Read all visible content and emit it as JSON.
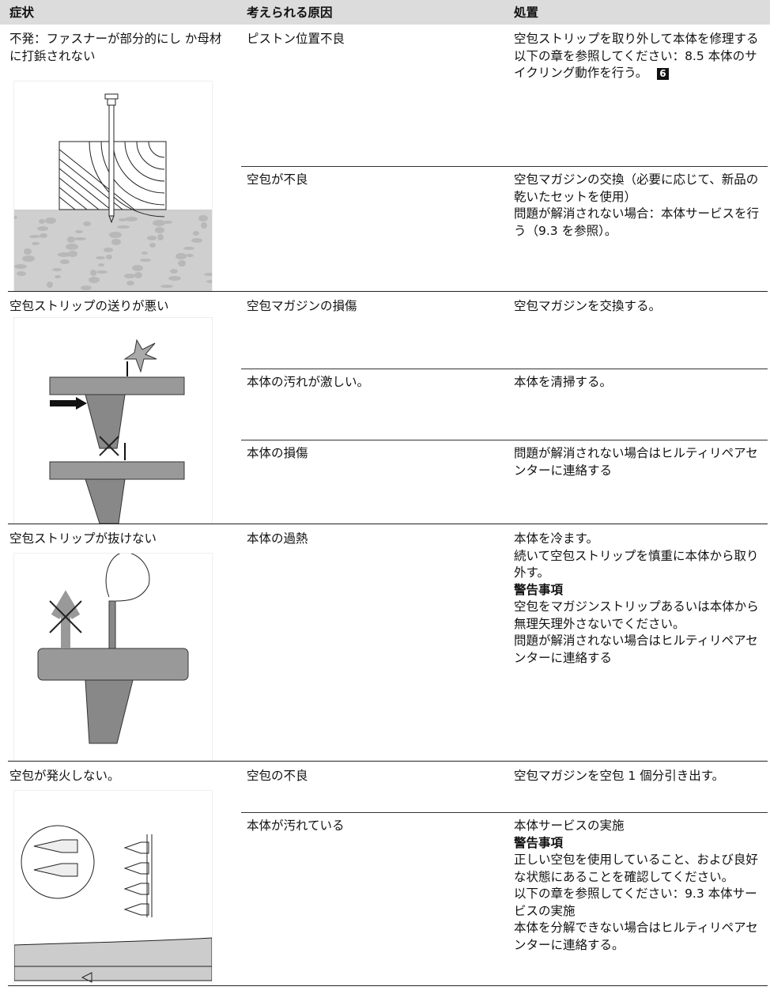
{
  "header": {
    "columns": [
      "症状",
      "考えられる原因",
      "処置"
    ]
  },
  "rows": [
    {
      "symptom": "不発：ファスナーが部分的にし か母材に打鋲されない",
      "causes": [
        {
          "cause": "ピストン位置不良",
          "remedy": [
            "空包ストリップを取り外して本体を修理する",
            "以下の章を参照してください：8.5 本体のサイクリング動作を行う。"
          ],
          "figure_ref": "6"
        },
        {
          "cause": "空包が不良",
          "remedy": [
            "空包マガジンの交換（必要に応じて、新品の乾いたセットを使用）",
            "問題が解消されない場合：本体サービスを行う（9.3 を参照）。"
          ]
        }
      ]
    },
    {
      "symptom": "空包ストリップの送りが悪い",
      "causes": [
        {
          "cause": "空包マガジンの損傷",
          "remedy": [
            "空包マガジンを交換する。"
          ]
        },
        {
          "cause": "本体の汚れが激しい。",
          "remedy": [
            "本体を清掃する。"
          ]
        },
        {
          "cause": "本体の損傷",
          "remedy": [
            "問題が解消されない場合はヒルティリペアセンターに連絡する"
          ]
        }
      ]
    },
    {
      "symptom": "空包ストリップが抜けない",
      "causes": [
        {
          "cause": "本体の過熱",
          "remedy": [
            "本体を冷ます。",
            "続いて空包ストリップを慎重に本体から取り外す。",
            {
              "text": "警告事項",
              "bold": true
            },
            "空包をマガジンストリップあるいは本体から無理矢理外さないでください。",
            "問題が解消されない場合はヒルティリペアセンターに連絡する"
          ]
        }
      ]
    },
    {
      "symptom": "空包が発火しない。",
      "causes": [
        {
          "cause": "空包の不良",
          "remedy": [
            "空包マガジンを空包 1 個分引き出す。"
          ]
        },
        {
          "cause": "本体が汚れている",
          "remedy": [
            "本体サービスの実施",
            {
              "text": "警告事項",
              "bold": true
            },
            "正しい空包を使用していること、および良好な状態にあることを確認してください。",
            "以下の章を参照してください：9.3 本体サービスの実施",
            "本体を分解できない場合はヒルティリペアセンターに連絡する。"
          ]
        }
      ]
    }
  ]
}
